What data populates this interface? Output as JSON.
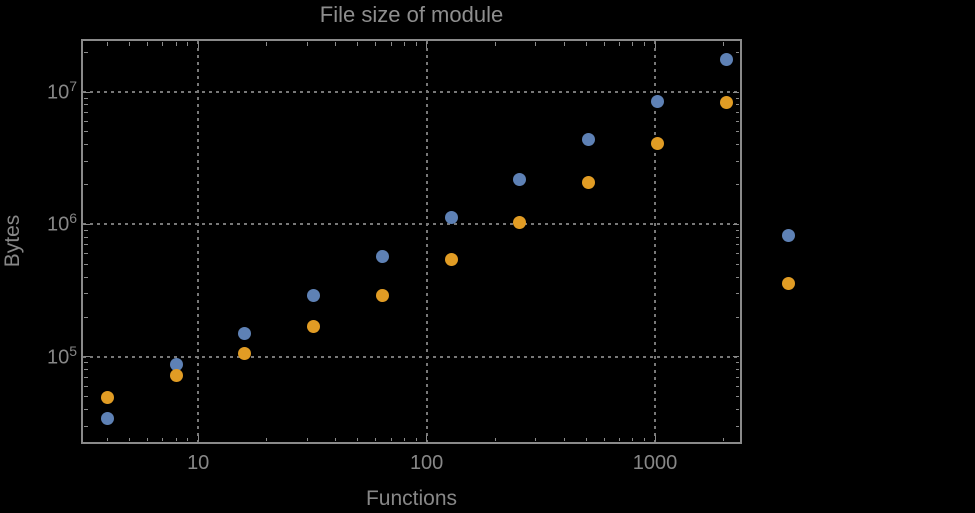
{
  "colors": {
    "background": "#000000",
    "text": "#878787",
    "frame": "#8a8a8a",
    "grid": "#787878",
    "series_blue": "#5e81b5",
    "series_orange": "#e19c24"
  },
  "chart_data": {
    "type": "scatter",
    "title": "File size of module",
    "xlabel": "Functions",
    "ylabel": "Bytes",
    "x_scale": "log",
    "y_scale": "log",
    "xlim": [
      3.1,
      2378
    ],
    "ylim": [
      22400,
      24700000
    ],
    "grid": true,
    "x_ticks": [
      {
        "value": 10,
        "label": "10"
      },
      {
        "value": 100,
        "label": "100"
      },
      {
        "value": 1000,
        "label": "1000"
      }
    ],
    "y_ticks": [
      {
        "value": 100000,
        "base": "10",
        "exp": "5"
      },
      {
        "value": 1000000,
        "base": "10",
        "exp": "6"
      },
      {
        "value": 10000000,
        "base": "10",
        "exp": "7"
      }
    ],
    "series": [
      {
        "name": "series-blue",
        "color": "#5e81b5",
        "x": [
          4,
          8,
          16,
          32,
          64,
          128,
          256,
          512,
          1024,
          2048
        ],
        "y": [
          34000,
          87000,
          150000,
          290000,
          570000,
          1120000,
          2200000,
          4400000,
          8500000,
          17500000
        ]
      },
      {
        "name": "series-orange",
        "color": "#e19c24",
        "x": [
          4,
          8,
          16,
          32,
          64,
          128,
          256,
          512,
          1024,
          2048
        ],
        "y": [
          49000,
          72000,
          107000,
          170000,
          290000,
          540000,
          1040000,
          2060000,
          4100000,
          8300000
        ]
      }
    ],
    "legend": {
      "position": "outside-right",
      "entries": [
        {
          "name": "series-blue",
          "color": "#5e81b5",
          "label": ""
        },
        {
          "name": "series-orange",
          "color": "#e19c24",
          "label": ""
        }
      ]
    }
  }
}
